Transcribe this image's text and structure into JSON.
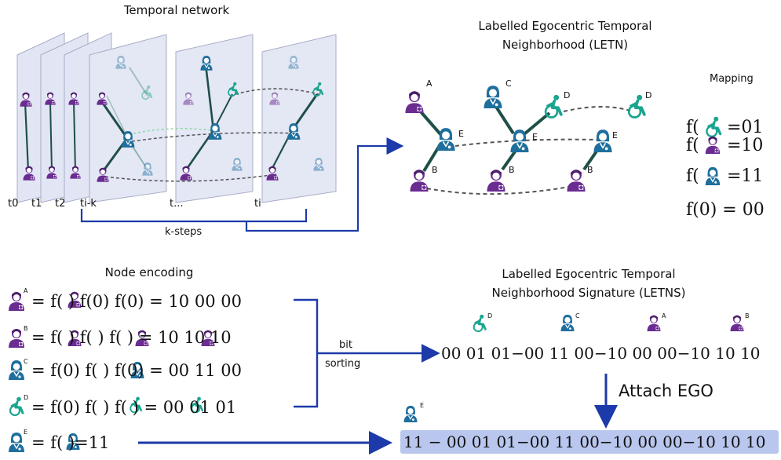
{
  "titles": {
    "temporal_network": "Temporal network",
    "letn_line1": "Labelled Egocentric Temporal",
    "letn_line2": "Neighborhood (LETN)",
    "node_encoding": "Node encoding",
    "letns_line1": "Labelled Egocentric Temporal",
    "letns_line2": "Neighborhood Signature (LETNS)",
    "mapping": "Mapping"
  },
  "time_labels": [
    "t0",
    "t1",
    "t2",
    "ti-k",
    "t...",
    "ti"
  ],
  "k_steps": "k-steps",
  "letn_node_letters": [
    "A",
    "E",
    "B",
    "C",
    "E",
    "B",
    "D",
    "E",
    "B",
    "D"
  ],
  "mapping_rows": [
    {
      "icon": "patient-wheelchair",
      "value": "=01"
    },
    {
      "icon": "nurse",
      "value": "=10"
    },
    {
      "icon": "doctor",
      "value": "=11"
    },
    {
      "icon": "none",
      "expr": "f(0) = 00"
    }
  ],
  "encoding_rows": [
    {
      "node": "A",
      "expr": "= f( ) f(0) f(0) = 10 00 00"
    },
    {
      "node": "B",
      "expr": "= f( ) f( ) f( ) = 10 10 10"
    },
    {
      "node": "C",
      "expr": "= f(0) f( ) f(0) = 00 11 00"
    },
    {
      "node": "D",
      "expr": "= f(0) f( ) f( ) = 00 01 01"
    },
    {
      "node": "E",
      "expr": "= f( )=11"
    }
  ],
  "bit_sorting_line1": "bit",
  "bit_sorting_line2": "sorting",
  "signature_letters": [
    "D",
    "C",
    "A",
    "B"
  ],
  "signature": "00 01 01−00 11 00−10 00 00−10 10 10",
  "attach_ego": "Attach EGO",
  "ego_letter": "E",
  "final_signature": "11 − 00 01 01−00 11 00−10 00 00−10 10 10",
  "colors": {
    "nurse": "#6a2c91",
    "doctor": "#1f6f9e",
    "patient": "#1aa58f",
    "arrow": "#1c3aa9",
    "edge": "#1f4f49",
    "highlight": "#b9c7ee"
  }
}
